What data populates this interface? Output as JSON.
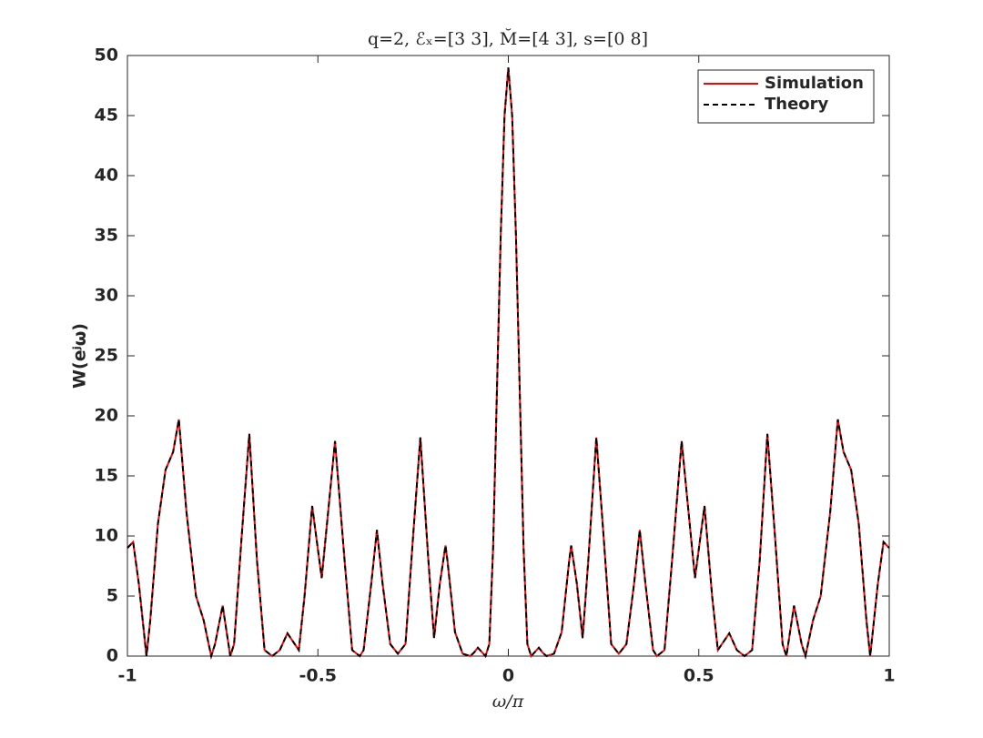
{
  "chart_data": {
    "type": "line",
    "title": "q=2, ℰₓ=[3 3], M̆=[4 3], s=[0 8]",
    "x_label": "ω/π",
    "y_label": "W(eʲω)",
    "x": [
      -1,
      -0.985,
      -0.97,
      -0.95,
      -0.94,
      -0.92,
      -0.9,
      -0.88,
      -0.865,
      -0.845,
      -0.82,
      -0.8,
      -0.78,
      -0.77,
      -0.75,
      -0.73,
      -0.72,
      -0.7,
      -0.68,
      -0.66,
      -0.64,
      -0.62,
      -0.6,
      -0.58,
      -0.55,
      -0.535,
      -0.515,
      -0.49,
      -0.47,
      -0.455,
      -0.43,
      -0.41,
      -0.39,
      -0.38,
      -0.36,
      -0.345,
      -0.33,
      -0.31,
      -0.29,
      -0.27,
      -0.25,
      -0.231,
      -0.21,
      -0.195,
      -0.18,
      -0.165,
      -0.16,
      -0.14,
      -0.12,
      -0.1,
      -0.09,
      -0.08,
      -0.06,
      -0.05,
      -0.04,
      -0.03,
      -0.02,
      -0.01,
      0,
      0.01,
      0.02,
      0.03,
      0.04,
      0.05,
      0.06,
      0.08,
      0.09,
      0.1,
      0.12,
      0.14,
      0.16,
      0.165,
      0.18,
      0.195,
      0.21,
      0.231,
      0.25,
      0.27,
      0.29,
      0.31,
      0.33,
      0.345,
      0.36,
      0.38,
      0.39,
      0.41,
      0.43,
      0.455,
      0.47,
      0.49,
      0.515,
      0.535,
      0.55,
      0.58,
      0.6,
      0.62,
      0.64,
      0.66,
      0.68,
      0.7,
      0.72,
      0.73,
      0.75,
      0.77,
      0.78,
      0.8,
      0.82,
      0.845,
      0.865,
      0.88,
      0.9,
      0.92,
      0.94,
      0.95,
      0.97,
      0.985,
      1
    ],
    "series": [
      {
        "name": "Simulation",
        "color": "#ff0000",
        "dash": "solid",
        "values": [
          9,
          9.5,
          6,
          0,
          3,
          11,
          15.5,
          17,
          19.7,
          12,
          5,
          3,
          0,
          1,
          4.2,
          0,
          1,
          10,
          18.5,
          8,
          0.5,
          0,
          0.5,
          1.9,
          0.5,
          5,
          12.5,
          6.5,
          13,
          17.9,
          8,
          0.5,
          0,
          0.5,
          6,
          10.5,
          6,
          1,
          0.2,
          1,
          10,
          18.2,
          8,
          1.5,
          6,
          9.2,
          8,
          2,
          0.2,
          0,
          0.3,
          0.7,
          0,
          1,
          9,
          22,
          35,
          45,
          49,
          45,
          35,
          22,
          9,
          1,
          0,
          0.7,
          0.3,
          0,
          0.2,
          2,
          8,
          9.2,
          6,
          1.5,
          8,
          18.2,
          10,
          1,
          0.2,
          1,
          6,
          10.5,
          6,
          0.5,
          0,
          0.5,
          8,
          17.9,
          13,
          6.5,
          12.5,
          5,
          0.5,
          1.9,
          0.5,
          0,
          0.5,
          8,
          18.5,
          10,
          1,
          0,
          4.2,
          1,
          0,
          3,
          5,
          12,
          19.7,
          17,
          15.5,
          11,
          3,
          0,
          6,
          9.5,
          9
        ]
      },
      {
        "name": "Theory",
        "color": "#000000",
        "dash": "dashed",
        "values": [
          9,
          9.5,
          6,
          0,
          3,
          11,
          15.5,
          17,
          19.7,
          12,
          5,
          3,
          0,
          1,
          4.2,
          0,
          1,
          10,
          18.5,
          8,
          0.5,
          0,
          0.5,
          1.9,
          0.5,
          5,
          12.5,
          6.5,
          13,
          17.9,
          8,
          0.5,
          0,
          0.5,
          6,
          10.5,
          6,
          1,
          0.2,
          1,
          10,
          18.2,
          8,
          1.5,
          6,
          9.2,
          8,
          2,
          0.2,
          0,
          0.3,
          0.7,
          0,
          1,
          9,
          22,
          35,
          45,
          49,
          45,
          35,
          22,
          9,
          1,
          0,
          0.7,
          0.3,
          0,
          0.2,
          2,
          8,
          9.2,
          6,
          1.5,
          8,
          18.2,
          10,
          1,
          0.2,
          1,
          6,
          10.5,
          6,
          0.5,
          0,
          0.5,
          8,
          17.9,
          13,
          6.5,
          12.5,
          5,
          0.5,
          1.9,
          0.5,
          0,
          0.5,
          8,
          18.5,
          10,
          1,
          0,
          4.2,
          1,
          0,
          3,
          5,
          12,
          19.7,
          17,
          15.5,
          11,
          3,
          0,
          6,
          9.5,
          9
        ]
      }
    ],
    "xlim": [
      -1,
      1
    ],
    "xticks": [
      -1,
      -0.5,
      0,
      0.5,
      1
    ],
    "ylim": [
      0,
      50
    ],
    "yticks": [
      0,
      5,
      10,
      15,
      20,
      25,
      30,
      35,
      40,
      45,
      50
    ],
    "legend": "top-right",
    "grid": false
  }
}
